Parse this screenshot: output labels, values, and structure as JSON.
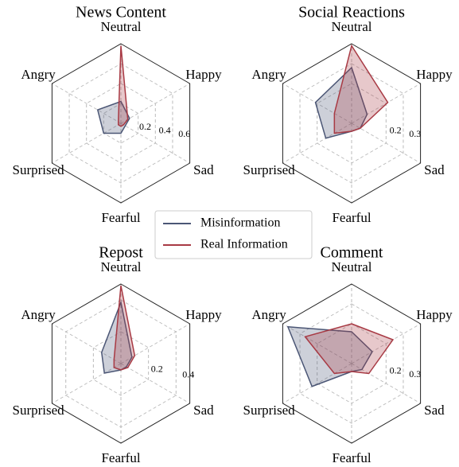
{
  "chart_data": [
    {
      "type": "radar",
      "title": "News Content",
      "categories": [
        "Neutral",
        "Happy",
        "Sad",
        "Fearful",
        "Surprised",
        "Angry"
      ],
      "series": [
        {
          "name": "Misinformation",
          "color": "#4b5675",
          "values": [
            0.22,
            0.1,
            0.05,
            0.1,
            0.2,
            0.27
          ]
        },
        {
          "name": "Real Information",
          "color": "#a83a44",
          "values": [
            0.78,
            0.08,
            0.03,
            0.03,
            0.03,
            0.03
          ]
        }
      ],
      "ylim": [
        0,
        0.8
      ],
      "yticks": [
        0.2,
        0.4,
        0.6
      ],
      "grid": true
    },
    {
      "type": "radar",
      "title": "Social Reactions",
      "categories": [
        "Neutral",
        "Happy",
        "Sad",
        "Fearful",
        "Surprised",
        "Angry"
      ],
      "series": [
        {
          "name": "Misinformation",
          "color": "#4b5675",
          "values": [
            0.28,
            0.09,
            0.05,
            0.04,
            0.15,
            0.21
          ]
        },
        {
          "name": "Real Information",
          "color": "#a83a44",
          "values": [
            0.39,
            0.21,
            0.05,
            0.04,
            0.1,
            0.1
          ]
        }
      ],
      "ylim": [
        0,
        0.4
      ],
      "yticks": [
        0.2,
        0.3
      ],
      "grid": true
    },
    {
      "type": "radar",
      "title": "Repost",
      "categories": [
        "Neutral",
        "Happy",
        "Sad",
        "Fearful",
        "Surprised",
        "Angry"
      ],
      "series": [
        {
          "name": "Misinformation",
          "color": "#4b5675",
          "values": [
            0.385,
            0.08,
            0.04,
            0.04,
            0.12,
            0.14
          ]
        },
        {
          "name": "Real Information",
          "color": "#a83a44",
          "values": [
            0.49,
            0.1,
            0.05,
            0.04,
            0.05,
            0.05
          ]
        }
      ],
      "ylim": [
        0,
        0.5
      ],
      "yticks": [
        0.2,
        0.4
      ],
      "grid": true
    },
    {
      "type": "radar",
      "title": "Comment",
      "categories": [
        "Neutral",
        "Happy",
        "Sad",
        "Fearful",
        "Surprised",
        "Angry"
      ],
      "series": [
        {
          "name": "Misinformation",
          "color": "#4b5675",
          "values": [
            0.16,
            0.12,
            0.06,
            0.04,
            0.23,
            0.37
          ]
        },
        {
          "name": "Real Information",
          "color": "#a83a44",
          "values": [
            0.2,
            0.24,
            0.1,
            0.04,
            0.1,
            0.27
          ]
        }
      ],
      "ylim": [
        0,
        0.4
      ],
      "yticks": [
        0.2,
        0.3
      ],
      "grid": true
    }
  ]
}
